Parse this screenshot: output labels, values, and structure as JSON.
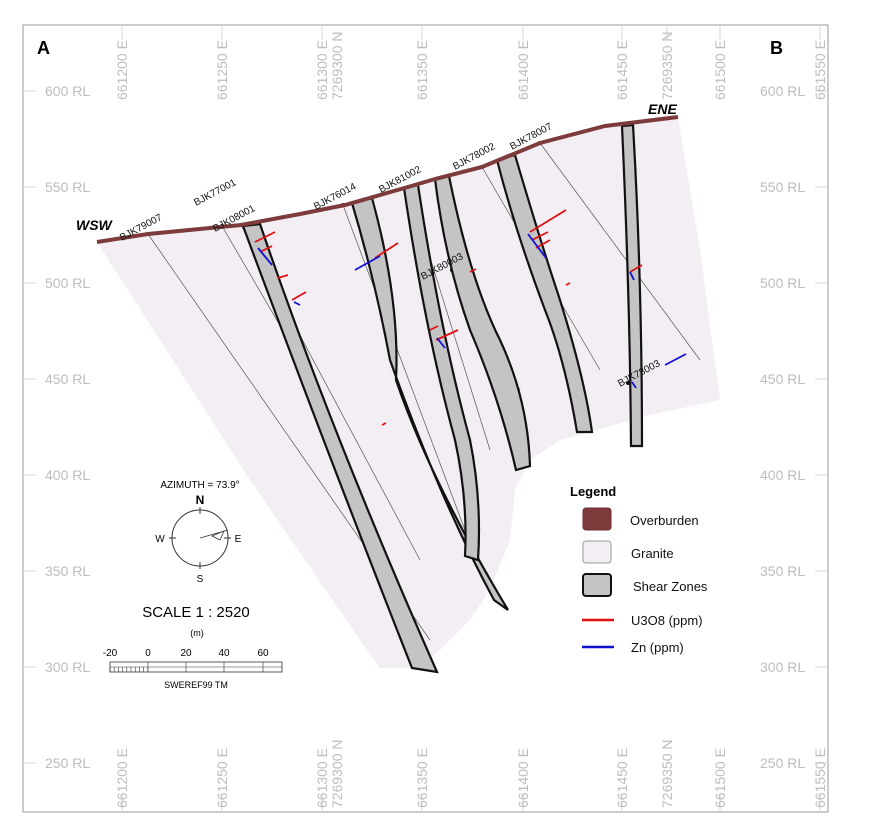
{
  "section": {
    "start_label": "A",
    "end_label": "B",
    "west_label": "WSW",
    "east_label": "ENE"
  },
  "grid": {
    "eastings": [
      "661200 E",
      "661250 E",
      "661300 E",
      "661350 E",
      "661400 E",
      "661450 E",
      "661500 E",
      "661550 E"
    ],
    "northings": [
      "7269300 N",
      "7269350 N"
    ],
    "levels": [
      "600 RL",
      "550 RL",
      "500 RL",
      "450 RL",
      "400 RL",
      "350 RL",
      "300 RL",
      "250 RL"
    ]
  },
  "drillholes": [
    "BJK79007",
    "BJK77001",
    "BJK08001",
    "BJK76014",
    "BJK81002",
    "BJK80003",
    "BJK78002",
    "BJK78007",
    "BJK78003"
  ],
  "legend": {
    "title": "Legend",
    "items": [
      {
        "label": "Overburden",
        "color": "#7d3b3b"
      },
      {
        "label": "Granite",
        "color": "#f3eef3"
      },
      {
        "label": "Shear Zones",
        "color": "#c4c4c4"
      },
      {
        "label": "U3O8 (ppm)",
        "color": "#e01010"
      },
      {
        "label": "Zn (ppm)",
        "color": "#1010d0"
      }
    ]
  },
  "compass": {
    "azimuth_text": "AZIMUTH = 73.9°",
    "n": "N",
    "s": "S",
    "e": "E",
    "w": "W"
  },
  "scale": {
    "text": "SCALE  1 : 2520",
    "unit": "(m)",
    "ticks": [
      "-20",
      "0",
      "20",
      "40",
      "60"
    ],
    "datum": "SWEREF99 TM"
  }
}
